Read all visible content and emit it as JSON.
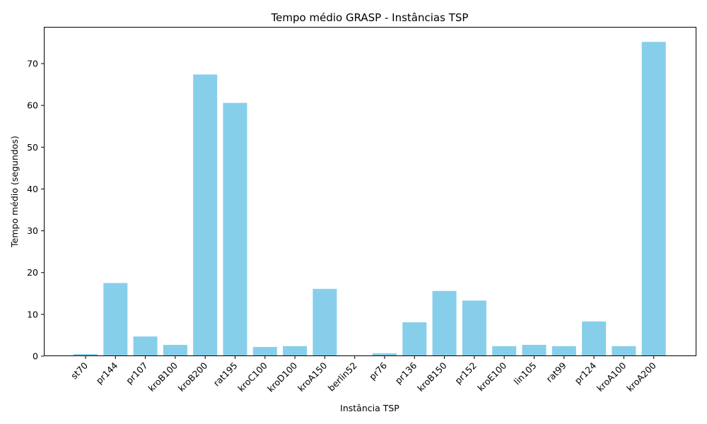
{
  "chart_data": {
    "type": "bar",
    "title": "Tempo médio GRASP - Instâncias TSP",
    "xlabel": "Instância TSP",
    "ylabel": "Tempo médio (segundos)",
    "ylim": [
      0,
      78.8
    ],
    "yticks": [
      0,
      10,
      20,
      30,
      40,
      50,
      60,
      70
    ],
    "grid": false,
    "bar_color": "#87ceeb",
    "categories": [
      "st70",
      "pr144",
      "pr107",
      "kroB100",
      "kroB200",
      "rat195",
      "kroC100",
      "kroD100",
      "kroA150",
      "berlin52",
      "pr76",
      "pr136",
      "kroB150",
      "pr152",
      "kroE100",
      "lin105",
      "rat99",
      "pr124",
      "kroA100",
      "kroA200"
    ],
    "values": [
      0.5,
      17.5,
      4.7,
      2.7,
      67.4,
      60.6,
      2.2,
      2.4,
      16.1,
      0.1,
      0.7,
      8.1,
      15.6,
      13.3,
      2.4,
      2.7,
      2.4,
      8.3,
      2.4,
      75.2
    ]
  }
}
